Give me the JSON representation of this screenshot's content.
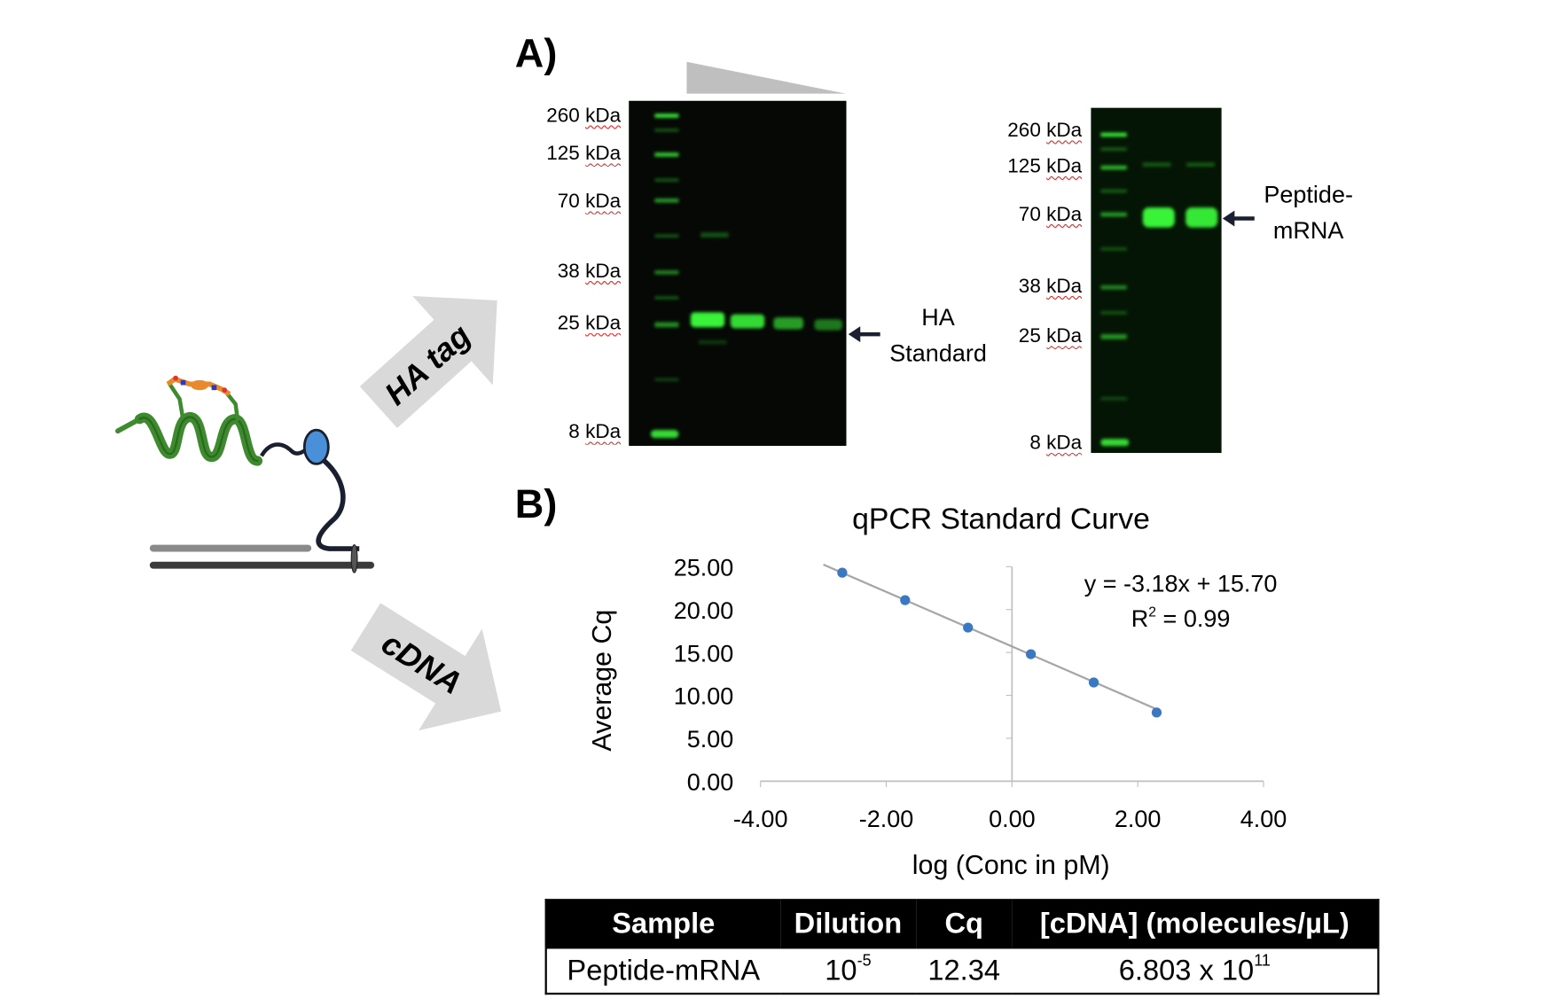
{
  "panel_a": {
    "label": "A)",
    "gel1": {
      "markers": [
        "260 kDa",
        "125 kDa",
        "70 kDa",
        "38 kDa",
        "25 kDa",
        "8 kDa"
      ],
      "band_label_line1": "HA",
      "band_label_line2": "Standard"
    },
    "gel2": {
      "markers": [
        "260 kDa",
        "125 kDa",
        "70 kDa",
        "38 kDa",
        "25 kDa",
        "8 kDa"
      ],
      "band_label_line1": "Peptide-",
      "band_label_line2": "mRNA"
    }
  },
  "arrows": {
    "ha_tag": "HA tag",
    "cdna": "cDNA"
  },
  "panel_b": {
    "label": "B)",
    "chart_data": {
      "type": "scatter",
      "title": "qPCR Standard Curve",
      "xlabel": "log (Conc in pM)",
      "ylabel": "Average Cq",
      "xlim": [
        -4,
        4
      ],
      "ylim": [
        0,
        25
      ],
      "x_ticks": [
        "-4.00",
        "-2.00",
        "0.00",
        "2.00",
        "4.00"
      ],
      "y_ticks": [
        "0.00",
        "5.00",
        "10.00",
        "15.00",
        "20.00",
        "25.00"
      ],
      "x": [
        -2.7,
        -1.7,
        -0.7,
        0.3,
        1.3,
        2.3
      ],
      "y": [
        24.3,
        21.1,
        17.9,
        14.8,
        11.5,
        8.0
      ],
      "trendline": {
        "slope": -3.18,
        "intercept": 15.7,
        "x_range": [
          -3.0,
          2.3
        ]
      },
      "equation": "y = -3.18x + 15.70",
      "r2_prefix": "R",
      "r2_sup": "2",
      "r2_value": " = 0.99",
      "point_color": "#3a78c2",
      "line_color": "#a6a6a6"
    },
    "table": {
      "headers": [
        "Sample",
        "Dilution",
        "Cq",
        "[cDNA] (molecules/µL)"
      ],
      "row": {
        "sample": "Peptide-mRNA",
        "dilution_base": "10",
        "dilution_exp": "-5",
        "cq": "12.34",
        "conc_mantissa": "6.803 x 10",
        "conc_exp": "11"
      }
    }
  }
}
